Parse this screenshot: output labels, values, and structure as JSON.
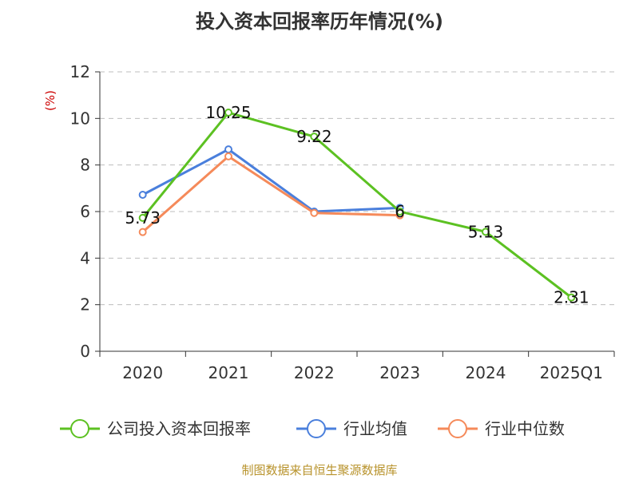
{
  "chart_data": {
    "type": "line",
    "title": "投入资本回报率历年情况(%)",
    "ylabel": "(%)",
    "categories": [
      "2020",
      "2021",
      "2022",
      "2023",
      "2024",
      "2025Q1"
    ],
    "ylim": [
      0,
      12
    ],
    "yticks": [
      "0",
      "2",
      "4",
      "6",
      "8",
      "10",
      "12"
    ],
    "grid": true,
    "legend_position": "bottom",
    "series": [
      {
        "name": "公司投入资本回报率",
        "color": "#5cc122",
        "values": [
          5.73,
          10.25,
          9.22,
          6.0,
          5.13,
          2.31
        ],
        "labels": [
          "5.73",
          "10.25",
          "9.22",
          "6",
          "5.13",
          "2.31"
        ]
      },
      {
        "name": "行业均值",
        "color": "#4a7fdc",
        "values": [
          6.72,
          8.67,
          6.0,
          6.16,
          null,
          null
        ]
      },
      {
        "name": "行业中位数",
        "color": "#f58a5a",
        "values": [
          5.12,
          8.37,
          5.94,
          5.84,
          null,
          null
        ]
      }
    ],
    "source": "制图数据来自恒生聚源数据库"
  }
}
